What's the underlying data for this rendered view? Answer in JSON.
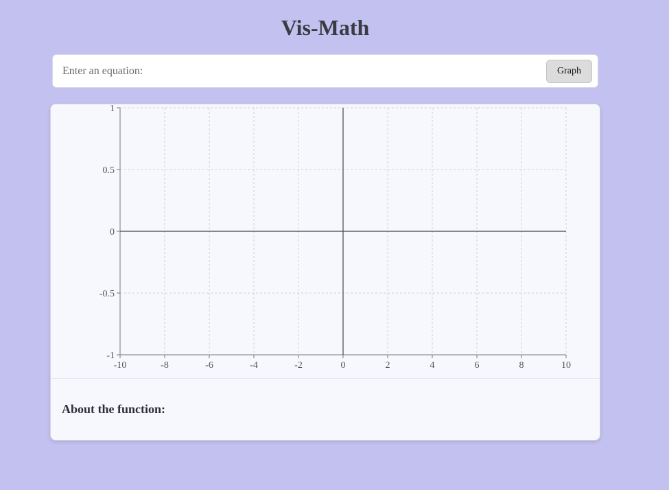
{
  "header": {
    "title": "Vis-Math"
  },
  "equation": {
    "placeholder": "Enter an equation:",
    "value": "",
    "button_label": "Graph"
  },
  "chart_data": {
    "type": "line",
    "xlim": [
      -10,
      10
    ],
    "ylim": [
      -1,
      1
    ],
    "x_ticks": [
      -10,
      -8,
      -6,
      -4,
      -2,
      0,
      2,
      4,
      6,
      8,
      10
    ],
    "y_ticks": [
      1,
      0.5,
      0,
      -0.5,
      -1
    ],
    "x_tick_labels": [
      "-10",
      "-8",
      "-6",
      "-4",
      "-2",
      "0",
      "2",
      "4",
      "6",
      "8",
      "10"
    ],
    "y_tick_labels": [
      "1",
      "0.5",
      "0",
      "-0.5",
      "-1"
    ],
    "grid": true,
    "series": []
  },
  "about": {
    "heading": "About the function:"
  },
  "colors": {
    "background": "#c3c1ef",
    "card": "#f7f8fd",
    "grid": "#cfcfd6",
    "axis": "#444444"
  }
}
